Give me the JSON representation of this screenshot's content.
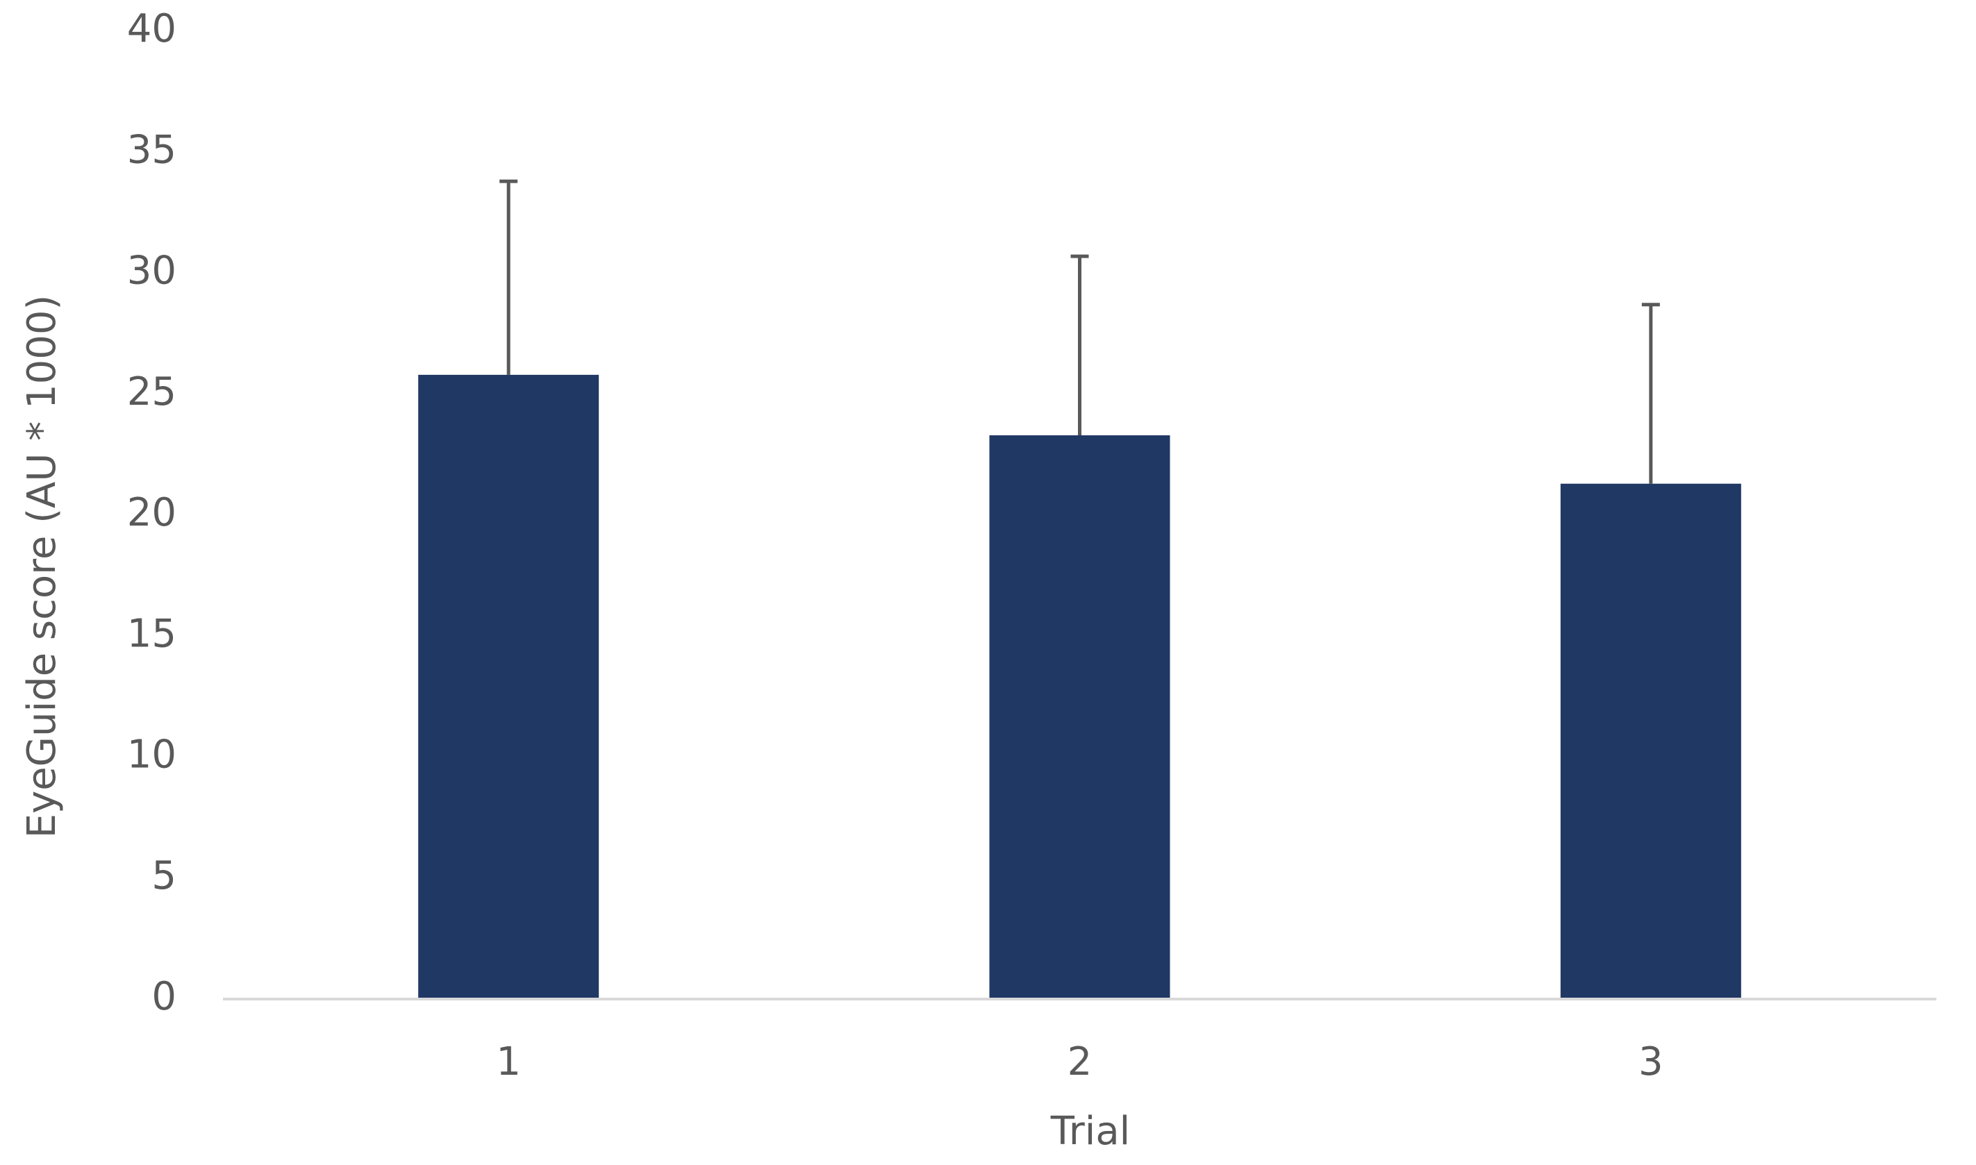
{
  "chart_data": {
    "type": "bar",
    "x_label": "Trial",
    "y_label": "EyeGuide score (AU * 1000)",
    "categories": [
      "1",
      "2",
      "3"
    ],
    "values": [
      25.8,
      23.3,
      21.3
    ],
    "errors": [
      8.0,
      7.4,
      7.4
    ],
    "color": "#203864",
    "error_color": "#595959",
    "ylim": [
      0,
      40
    ],
    "yticks": [
      0,
      5,
      10,
      15,
      20,
      25,
      30,
      35,
      40
    ],
    "grid": false
  }
}
